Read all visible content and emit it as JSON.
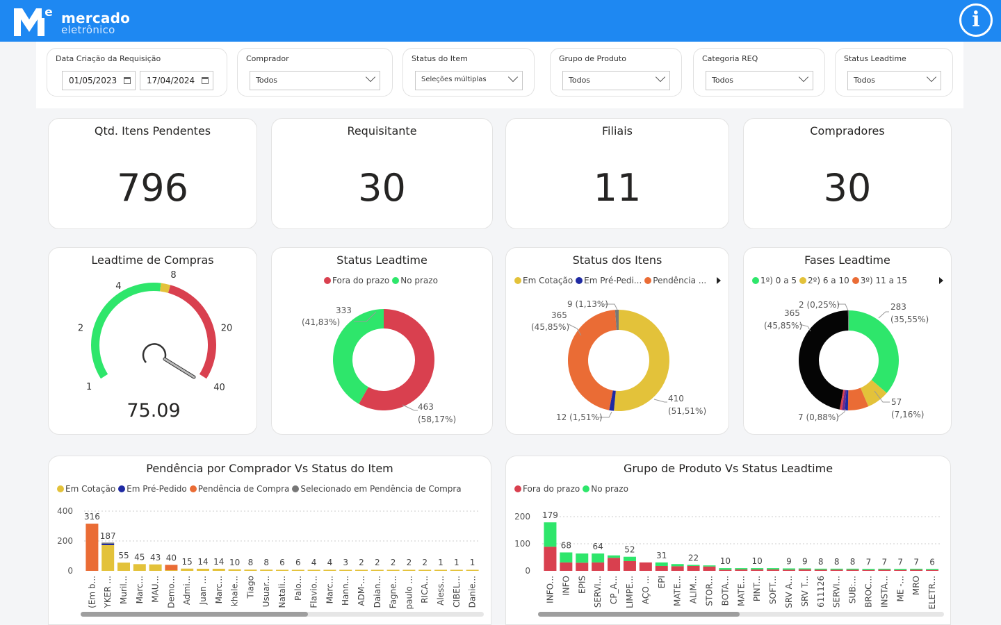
{
  "header": {
    "logo_text_1": "mercado",
    "logo_text_2": "eletrônico",
    "logo_letter": "e",
    "info_label": "i",
    "bar_color": "#1e88f2"
  },
  "filters": {
    "date": {
      "label": "Data Criação da Requisição",
      "start": "01/05/2023",
      "end": "17/04/2024"
    },
    "comprador": {
      "label": "Comprador",
      "value": "Todos"
    },
    "status_item": {
      "label": "Status do Item",
      "value": "Seleções múltiplas"
    },
    "grupo_produto": {
      "label": "Grupo de Produto",
      "value": "Todos"
    },
    "categoria_req": {
      "label": "Categoria REQ",
      "value": "Todos"
    },
    "status_leadtime": {
      "label": "Status Leadtime",
      "value": "Todos"
    }
  },
  "kpis": [
    {
      "title": "Qtd. Itens Pendentes",
      "value": "796"
    },
    {
      "title": "Requisitante",
      "value": "30"
    },
    {
      "title": "Filiais",
      "value": "11"
    },
    {
      "title": "Compradores",
      "value": "30"
    }
  ],
  "colors": {
    "green": "#2ee66b",
    "red": "#d9404f",
    "yellow": "#e3c23a",
    "orange": "#ea6c35",
    "navy": "#1f2aa3",
    "gray": "#777777",
    "black": "#050505",
    "purple": "#6b2a8c"
  },
  "chart_data": [
    {
      "type": "gauge",
      "title": "Leadtime de Compras",
      "value": 75.09,
      "value_label": "75.09",
      "scale": [
        {
          "tick": 1,
          "label": "1"
        },
        {
          "tick": 2,
          "label": "2"
        },
        {
          "tick": 4,
          "label": "4"
        },
        {
          "tick": 8,
          "label": "8"
        },
        {
          "tick": 20,
          "label": "20"
        },
        {
          "tick": 40,
          "label": "40"
        }
      ],
      "bands": [
        {
          "from": 1,
          "to": 7,
          "color": "#2ee66b"
        },
        {
          "from": 7,
          "to": 8,
          "color": "#e3c23a"
        },
        {
          "from": 8,
          "to": 40,
          "color": "#d9404f"
        }
      ]
    },
    {
      "type": "donut",
      "title": "Status Leadtime",
      "legend": [
        "Fora do prazo",
        "No prazo"
      ],
      "slices": [
        {
          "name": "Fora do prazo",
          "value": 463,
          "label_value": "463",
          "label_pct": "(58,17%)",
          "color": "#d9404f"
        },
        {
          "name": "No prazo",
          "value": 333,
          "label_value": "333",
          "label_pct": "(41,83%)",
          "color": "#2ee66b"
        }
      ]
    },
    {
      "type": "donut",
      "title": "Status dos Itens",
      "legend": [
        "Em Cotação",
        "Em Pré-Pedi...",
        "Pendência ..."
      ],
      "slices": [
        {
          "name": "Em Cotação",
          "value": 410,
          "label": "410",
          "label_pct": "(51,51%)",
          "color": "#e3c23a"
        },
        {
          "name": "Em Pré-Pedido",
          "value": 12,
          "label": "12 (1,51%)",
          "color": "#1f2aa3"
        },
        {
          "name": "Pendência de Compra",
          "value": 365,
          "label": "365",
          "label_pct": "(45,85%)",
          "color": "#ea6c35"
        },
        {
          "name": "Selecionado em Pendência de Compra",
          "value": 9,
          "label": "9 (1,13%)",
          "color": "#777777"
        }
      ]
    },
    {
      "type": "donut",
      "title": "Fases Leadtime",
      "legend": [
        "1º) 0 a 5",
        "2º) 6 a 10",
        "3º) 11 a 15"
      ],
      "slices": [
        {
          "name": "1º) 0 a 5",
          "value": 283,
          "label": "283",
          "label_pct": "(35,55%)",
          "color": "#2ee66b"
        },
        {
          "name": "2º) 6 a 10",
          "value": 57,
          "label": "57",
          "label_pct": "(7,16%)",
          "color": "#e3c23a"
        },
        {
          "name": "3º) 11 a 15",
          "value": 52,
          "color": "#ea6c35"
        },
        {
          "name": "",
          "value": 8,
          "color": "#1f2aa3"
        },
        {
          "name": "",
          "value": 7,
          "label": "7 (0,88%)",
          "color": "#6b2a8c"
        },
        {
          "name": "",
          "value": 6,
          "color": "#d9404f"
        },
        {
          "name": "",
          "value": 365,
          "label": "365",
          "label_pct": "(45,85%)",
          "color": "#050505"
        },
        {
          "name": "",
          "value": 2,
          "label": "2 (0,25%)",
          "color": "#777777"
        }
      ]
    },
    {
      "type": "bar",
      "stacked": true,
      "title": "Pendência por Comprador Vs Status do Item",
      "legend": [
        "Em Cotação",
        "Em Pré-Pedido",
        "Pendência de Compra",
        "Selecionado em Pendência de Compra"
      ],
      "ylim": [
        0,
        400
      ],
      "yticks": [
        "0",
        "200",
        "400"
      ],
      "categories": [
        "(Em b...",
        "YKER ...",
        "Muril...",
        "Marc...",
        "MAU...",
        "Demo...",
        "Admi...",
        "Juan ...",
        "Marc...",
        "khale...",
        "Tiago",
        "Usuar...",
        "Natali...",
        "Palo...",
        "Flavio...",
        "Marc...",
        "Hann...",
        "ADM-...",
        "Daian...",
        "Fagne...",
        "paulo ...",
        "RICA...",
        "Aless...",
        "CIBEL...",
        "Danie..."
      ],
      "totals": [
        316,
        187,
        55,
        45,
        43,
        40,
        15,
        14,
        14,
        10,
        8,
        8,
        6,
        6,
        4,
        4,
        3,
        2,
        2,
        2,
        2,
        2,
        1,
        1,
        1
      ],
      "series": [
        {
          "name": "Em Cotação",
          "color": "#e3c23a",
          "values": [
            0,
            172,
            55,
            45,
            43,
            4,
            15,
            14,
            14,
            10,
            8,
            8,
            6,
            6,
            4,
            4,
            3,
            2,
            2,
            2,
            2,
            2,
            1,
            1,
            1
          ]
        },
        {
          "name": "Em Pré-Pedido",
          "color": "#1f2aa3",
          "values": [
            0,
            10,
            0,
            0,
            0,
            0,
            0,
            0,
            0,
            0,
            0,
            0,
            0,
            0,
            0,
            0,
            0,
            0,
            0,
            0,
            0,
            0,
            0,
            0,
            0
          ]
        },
        {
          "name": "Pendência de Compra",
          "color": "#ea6c35",
          "values": [
            316,
            0,
            0,
            0,
            0,
            36,
            0,
            0,
            0,
            0,
            0,
            0,
            0,
            0,
            0,
            0,
            0,
            0,
            0,
            0,
            0,
            0,
            0,
            0,
            0
          ]
        },
        {
          "name": "Selecionado em Pendência de Compra",
          "color": "#777777",
          "values": [
            0,
            5,
            0,
            0,
            0,
            0,
            0,
            0,
            0,
            0,
            0,
            0,
            0,
            0,
            0,
            0,
            0,
            0,
            0,
            0,
            0,
            0,
            0,
            0,
            0
          ]
        }
      ]
    },
    {
      "type": "bar",
      "stacked": true,
      "title": "Grupo de Produto Vs Status Leadtime",
      "legend": [
        "Fora do prazo",
        "No prazo"
      ],
      "ylim": [
        0,
        200
      ],
      "yticks": [
        "0",
        "100",
        "200"
      ],
      "categories": [
        "INFO...",
        "INFO",
        "EPIS",
        "SERVI...",
        "CP_A...",
        "LIMPE...",
        "AÇO ...",
        "EPI",
        "MATE...",
        "ALIM...",
        "STOR...",
        "BOTA...",
        "MATE...",
        "PINT...",
        "SOFT...",
        "SRV A...",
        "SRV T...",
        "611126",
        "SERVI...",
        "SUB:...",
        "BROC...",
        "INSTA...",
        "ME -...",
        "MRO",
        "ELETR..."
      ],
      "totals": [
        179,
        68,
        64,
        64,
        57,
        52,
        31,
        31,
        25,
        22,
        20,
        10,
        10,
        10,
        10,
        9,
        9,
        8,
        8,
        8,
        7,
        7,
        7,
        7,
        6
      ],
      "total_labels": [
        "179",
        "68",
        "",
        "64",
        "",
        "52",
        "",
        "31",
        "",
        "22",
        "",
        "10",
        "",
        "10",
        "",
        "9",
        "9",
        "8",
        "8",
        "8",
        "7",
        "7",
        "7",
        "7",
        "6"
      ],
      "series": [
        {
          "name": "Fora do prazo",
          "color": "#d9404f",
          "values": [
            89,
            31,
            30,
            31,
            48,
            36,
            31,
            18,
            17,
            18,
            16,
            4,
            5,
            5,
            5,
            4,
            5,
            4,
            4,
            4,
            3,
            4,
            3,
            4,
            3
          ]
        },
        {
          "name": "No prazo",
          "color": "#2ee66b",
          "values": [
            90,
            37,
            34,
            33,
            9,
            16,
            0,
            13,
            8,
            4,
            4,
            6,
            5,
            5,
            5,
            5,
            4,
            4,
            4,
            4,
            4,
            3,
            4,
            3,
            3
          ]
        }
      ]
    }
  ]
}
